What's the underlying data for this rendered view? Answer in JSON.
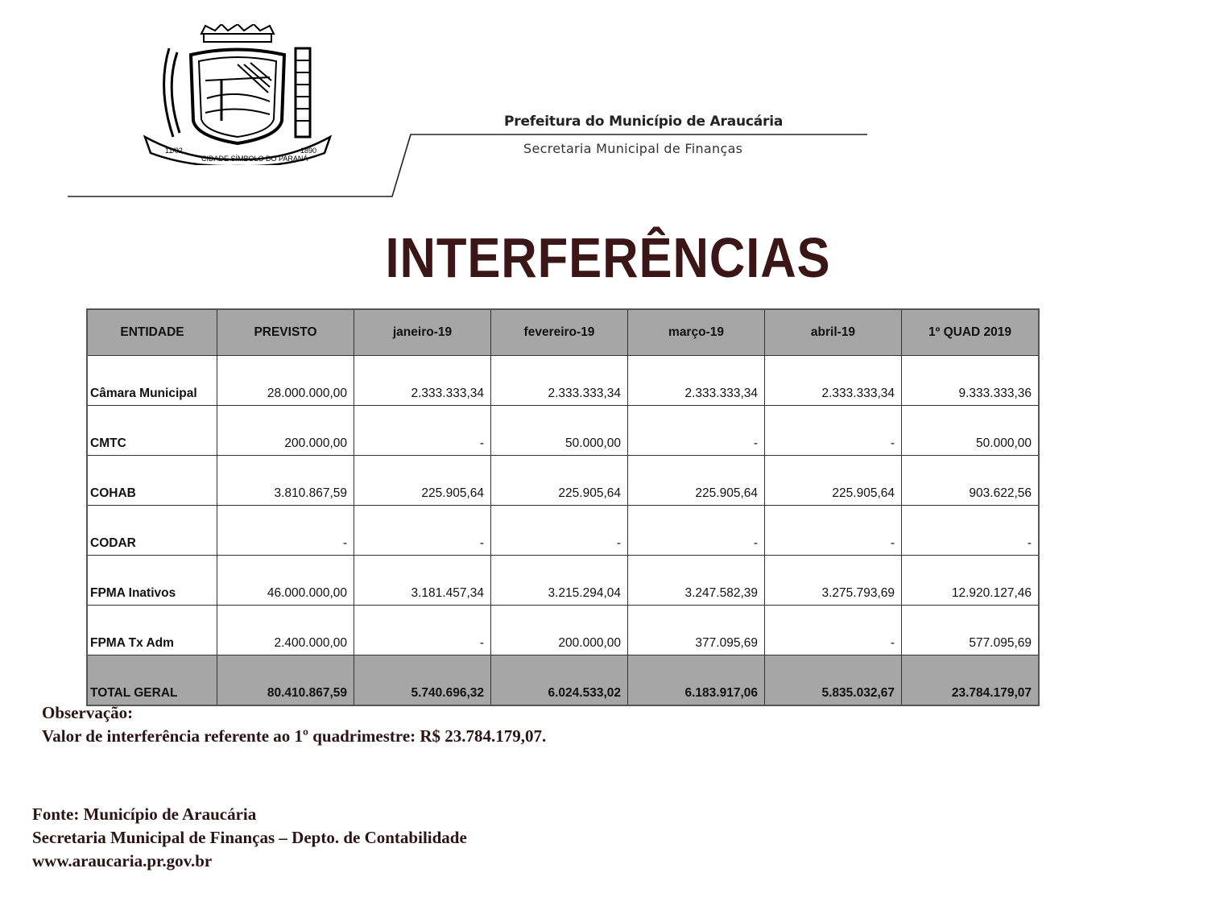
{
  "header": {
    "logo": {
      "ribbon_left": "11/02",
      "ribbon_center": "CIDADE SÍMBOLO DO PARANÁ",
      "ribbon_right": "1890"
    },
    "organization": "Prefeitura do Município de Araucária",
    "department": "Secretaria Municipal de Finanças"
  },
  "title": "INTERFERÊNCIAS",
  "table": {
    "columns": [
      "ENTIDADE",
      "PREVISTO",
      "janeiro-19",
      "fevereiro-19",
      "março-19",
      "abril-19",
      "1º QUAD 2019"
    ],
    "rows": [
      [
        "Câmara Municipal",
        "28.000.000,00",
        "2.333.333,34",
        "2.333.333,34",
        "2.333.333,34",
        "2.333.333,34",
        "9.333.333,36"
      ],
      [
        "CMTC",
        "200.000,00",
        "-",
        "50.000,00",
        "-",
        "-",
        "50.000,00"
      ],
      [
        "COHAB",
        "3.810.867,59",
        "225.905,64",
        "225.905,64",
        "225.905,64",
        "225.905,64",
        "903.622,56"
      ],
      [
        "CODAR",
        "-",
        "-",
        "-",
        "-",
        "-",
        "-"
      ],
      [
        "FPMA Inativos",
        "46.000.000,00",
        "3.181.457,34",
        "3.215.294,04",
        "3.247.582,39",
        "3.275.793,69",
        "12.920.127,46"
      ],
      [
        "FPMA Tx Adm",
        "2.400.000,00",
        "-",
        "200.000,00",
        "377.095,69",
        "-",
        "577.095,69"
      ]
    ],
    "total": [
      "TOTAL GERAL",
      "80.410.867,59",
      "5.740.696,32",
      "6.024.533,02",
      "6.183.917,06",
      "5.835.032,67",
      "23.784.179,07"
    ]
  },
  "observation": {
    "label": "Observação:",
    "text": "Valor de interferência referente ao 1º quadrimestre: R$ 23.784.179,07."
  },
  "source": {
    "line1": "Fonte: Município de Araucária",
    "line2": "Secretaria Municipal de Finanças – Depto. de Contabilidade",
    "line3": "www.araucaria.pr.gov.br"
  },
  "colors": {
    "title": "#3b1617",
    "table_header_bg": "#a6a6a6",
    "footer_text": "#2a1414"
  }
}
